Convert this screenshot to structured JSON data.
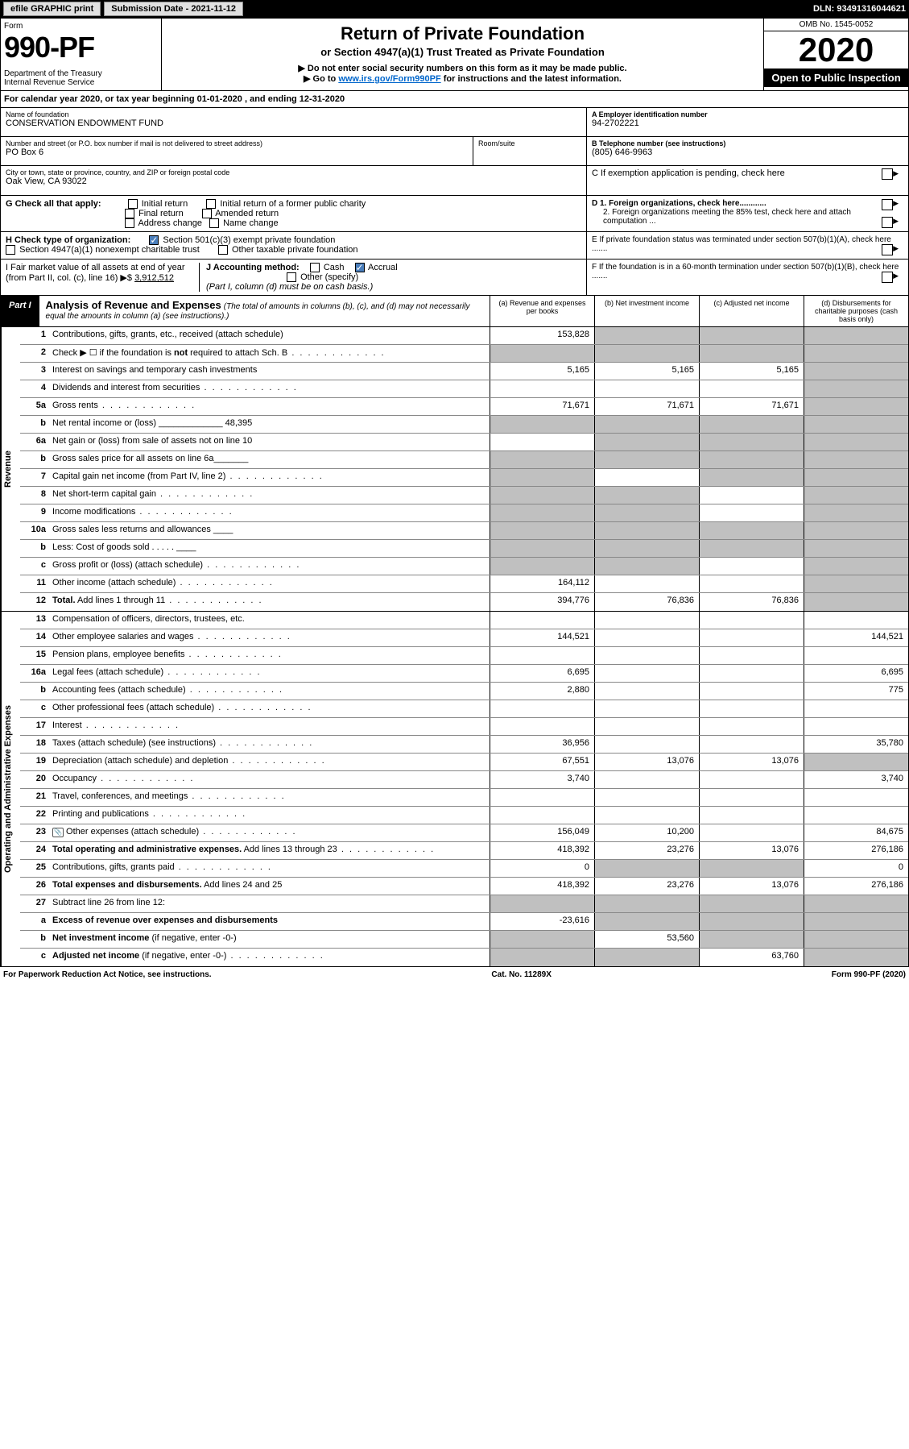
{
  "topbar": {
    "efile": "efile GRAPHIC print",
    "submission": "Submission Date - 2021-11-12",
    "dln": "DLN: 93491316044621"
  },
  "header": {
    "form_label": "Form",
    "form_num": "990-PF",
    "dept": "Department of the Treasury\nInternal Revenue Service",
    "title": "Return of Private Foundation",
    "subtitle": "or Section 4947(a)(1) Trust Treated as Private Foundation",
    "note1": "▶ Do not enter social security numbers on this form as it may be made public.",
    "note2_pre": "▶ Go to ",
    "note2_link": "www.irs.gov/Form990PF",
    "note2_post": " for instructions and the latest information.",
    "omb": "OMB No. 1545-0052",
    "year": "2020",
    "open": "Open to Public Inspection"
  },
  "calyear": "For calendar year 2020, or tax year beginning 01-01-2020                        , and ending 12-31-2020",
  "info": {
    "name_lbl": "Name of foundation",
    "name": "CONSERVATION ENDOWMENT FUND",
    "addr_lbl": "Number and street (or P.O. box number if mail is not delivered to street address)",
    "addr": "PO Box 6",
    "room_lbl": "Room/suite",
    "city_lbl": "City or town, state or province, country, and ZIP or foreign postal code",
    "city": "Oak View, CA  93022",
    "a_lbl": "A Employer identification number",
    "a_val": "94-2702221",
    "b_lbl": "B Telephone number (see instructions)",
    "b_val": "(805) 646-9963",
    "c_lbl": "C If exemption application is pending, check here",
    "d1": "D 1. Foreign organizations, check here............",
    "d2": "2. Foreign organizations meeting the 85% test, check here and attach computation ...",
    "e": "E  If private foundation status was terminated under section 507(b)(1)(A), check here .......",
    "f": "F  If the foundation is in a 60-month termination under section 507(b)(1)(B), check here .......",
    "g_lbl": "G Check all that apply:",
    "g_opts": [
      "Initial return",
      "Initial return of a former public charity",
      "Final return",
      "Amended return",
      "Address change",
      "Name change"
    ],
    "h_lbl": "H Check type of organization:",
    "h1": "Section 501(c)(3) exempt private foundation",
    "h2": "Section 4947(a)(1) nonexempt charitable trust",
    "h3": "Other taxable private foundation",
    "i_lbl": "I Fair market value of all assets at end of year (from Part II, col. (c), line 16) ▶$ ",
    "i_val": "3,912,512",
    "j_lbl": "J Accounting method:",
    "j_cash": "Cash",
    "j_accrual": "Accrual",
    "j_other": "Other (specify)",
    "j_note": "(Part I, column (d) must be on cash basis.)"
  },
  "part1": {
    "tag": "Part I",
    "title": "Analysis of Revenue and Expenses",
    "sub": "(The total of amounts in columns (b), (c), and (d) may not necessarily equal the amounts in column (a) (see instructions).)",
    "cols": {
      "a": "(a)   Revenue and expenses per books",
      "b": "(b)   Net investment income",
      "c": "(c)   Adjusted net income",
      "d": "(d)  Disbursements for charitable purposes (cash basis only)"
    }
  },
  "side_revenue": "Revenue",
  "side_expenses": "Operating and Administrative Expenses",
  "rows": [
    {
      "n": "1",
      "d": "Contributions, gifts, grants, etc., received (attach schedule)",
      "a": "153,828",
      "bGrey": true,
      "cGrey": true,
      "dGrey": true
    },
    {
      "n": "2",
      "d": "Check ▶ ☐ if the foundation is <b>not</b> required to attach Sch. B",
      "dotted": true,
      "aGrey": true,
      "bGrey": true,
      "cGrey": true,
      "dGrey": true
    },
    {
      "n": "3",
      "d": "Interest on savings and temporary cash investments",
      "a": "5,165",
      "b": "5,165",
      "c": "5,165",
      "dGrey": true
    },
    {
      "n": "4",
      "d": "Dividends and interest from securities",
      "dotted": true,
      "dGrey": true
    },
    {
      "n": "5a",
      "d": "Gross rents",
      "dotted": true,
      "a": "71,671",
      "b": "71,671",
      "c": "71,671",
      "dGrey": true
    },
    {
      "n": "b",
      "d": "Net rental income or (loss) _____________ 48,395",
      "aGrey": true,
      "bGrey": true,
      "cGrey": true,
      "dGrey": true
    },
    {
      "n": "6a",
      "d": "Net gain or (loss) from sale of assets not on line 10",
      "bGrey": true,
      "cGrey": true,
      "dGrey": true
    },
    {
      "n": "b",
      "d": "Gross sales price for all assets on line 6a_______",
      "aGrey": true,
      "bGrey": true,
      "cGrey": true,
      "dGrey": true
    },
    {
      "n": "7",
      "d": "Capital gain net income (from Part IV, line 2)",
      "dotted": true,
      "aGrey": true,
      "cGrey": true,
      "dGrey": true
    },
    {
      "n": "8",
      "d": "Net short-term capital gain",
      "dotted": true,
      "aGrey": true,
      "bGrey": true,
      "dGrey": true
    },
    {
      "n": "9",
      "d": "Income modifications",
      "dotted": true,
      "aGrey": true,
      "bGrey": true,
      "dGrey": true
    },
    {
      "n": "10a",
      "d": "Gross sales less returns and allowances ____",
      "aGrey": true,
      "bGrey": true,
      "cGrey": true,
      "dGrey": true
    },
    {
      "n": "b",
      "d": "Less: Cost of goods sold  . . . . . ____",
      "aGrey": true,
      "bGrey": true,
      "cGrey": true,
      "dGrey": true
    },
    {
      "n": "c",
      "d": "Gross profit or (loss) (attach schedule)",
      "dotted": true,
      "aGrey": true,
      "bGrey": true,
      "dGrey": true
    },
    {
      "n": "11",
      "d": "Other income (attach schedule)",
      "dotted": true,
      "a": "164,112",
      "dGrey": true
    },
    {
      "n": "12",
      "d": "<b>Total.</b> Add lines 1 through 11",
      "dotted": true,
      "a": "394,776",
      "b": "76,836",
      "c": "76,836",
      "dGrey": true,
      "bold": true
    }
  ],
  "exp_rows": [
    {
      "n": "13",
      "d": "Compensation of officers, directors, trustees, etc."
    },
    {
      "n": "14",
      "d": "Other employee salaries and wages",
      "dotted": true,
      "a": "144,521",
      "dval": "144,521"
    },
    {
      "n": "15",
      "d": "Pension plans, employee benefits",
      "dotted": true
    },
    {
      "n": "16a",
      "d": "Legal fees (attach schedule)",
      "dotted": true,
      "a": "6,695",
      "dval": "6,695"
    },
    {
      "n": "b",
      "d": "Accounting fees (attach schedule)",
      "dotted": true,
      "a": "2,880",
      "dval": "775"
    },
    {
      "n": "c",
      "d": "Other professional fees (attach schedule)",
      "dotted": true
    },
    {
      "n": "17",
      "d": "Interest",
      "dotted": true
    },
    {
      "n": "18",
      "d": "Taxes (attach schedule) (see instructions)",
      "dotted": true,
      "a": "36,956",
      "dval": "35,780"
    },
    {
      "n": "19",
      "d": "Depreciation (attach schedule) and depletion",
      "dotted": true,
      "a": "67,551",
      "b": "13,076",
      "c": "13,076",
      "dGrey": true
    },
    {
      "n": "20",
      "d": "Occupancy",
      "dotted": true,
      "a": "3,740",
      "dval": "3,740"
    },
    {
      "n": "21",
      "d": "Travel, conferences, and meetings",
      "dotted": true
    },
    {
      "n": "22",
      "d": "Printing and publications",
      "dotted": true
    },
    {
      "n": "23",
      "d": "Other expenses (attach schedule)",
      "dotted": true,
      "icon": true,
      "a": "156,049",
      "b": "10,200",
      "dval": "84,675"
    },
    {
      "n": "24",
      "d": "<b>Total operating and administrative expenses.</b> Add lines 13 through 23",
      "dotted": true,
      "a": "418,392",
      "b": "23,276",
      "c": "13,076",
      "dval": "276,186"
    },
    {
      "n": "25",
      "d": "Contributions, gifts, grants paid",
      "dotted": true,
      "a": "0",
      "bGrey": true,
      "cGrey": true,
      "dval": "0"
    },
    {
      "n": "26",
      "d": "<b>Total expenses and disbursements.</b> Add lines 24 and 25",
      "a": "418,392",
      "b": "23,276",
      "c": "13,076",
      "dval": "276,186"
    },
    {
      "n": "27",
      "d": "Subtract line 26 from line 12:",
      "aGrey": true,
      "bGrey": true,
      "cGrey": true,
      "dGrey": true
    },
    {
      "n": "a",
      "d": "<b>Excess of revenue over expenses and disbursements</b>",
      "a": "-23,616",
      "bGrey": true,
      "cGrey": true,
      "dGrey": true
    },
    {
      "n": "b",
      "d": "<b>Net investment income</b> (if negative, enter -0-)",
      "aGrey": true,
      "b": "53,560",
      "cGrey": true,
      "dGrey": true
    },
    {
      "n": "c",
      "d": "<b>Adjusted net income</b> (if negative, enter -0-)",
      "dotted": true,
      "aGrey": true,
      "bGrey": true,
      "c": "63,760",
      "dGrey": true
    }
  ],
  "footer": {
    "left": "For Paperwork Reduction Act Notice, see instructions.",
    "mid": "Cat. No. 11289X",
    "right": "Form 990-PF (2020)"
  }
}
